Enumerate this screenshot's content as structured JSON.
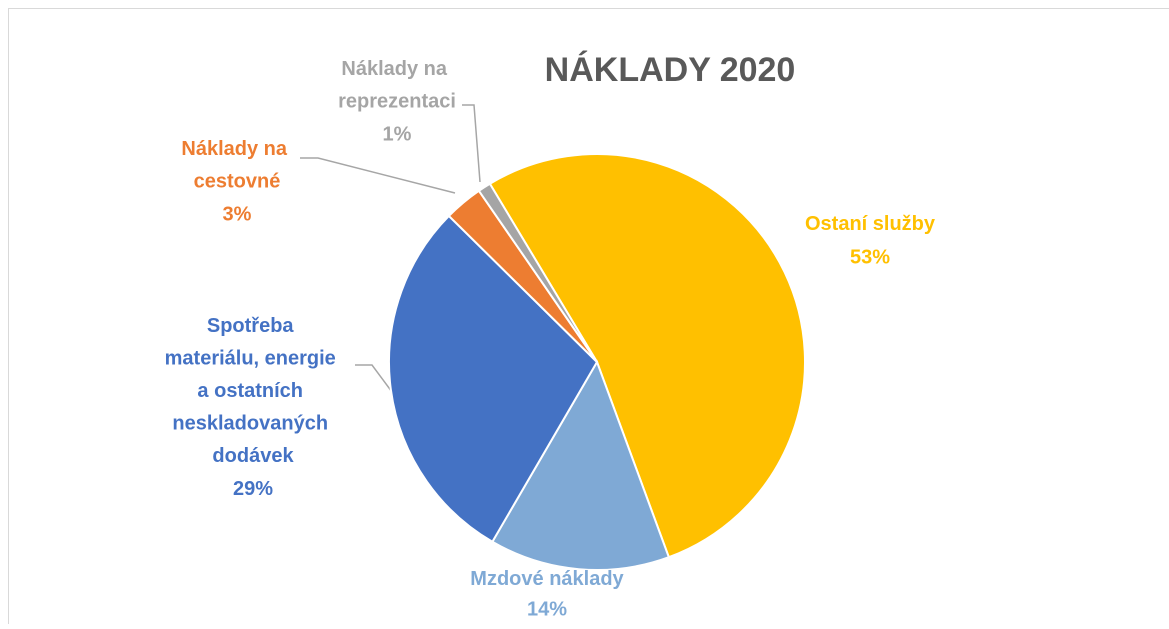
{
  "chart_data": {
    "type": "pie",
    "title": "NÁKLADY 2020",
    "categories": [
      "Ostaní služby",
      "Mzdové náklady",
      "Spotřeba materiálu, energie a ostatních neskladovaných dodávek",
      "Náklady na cestovné",
      "Náklady na reprezentaci"
    ],
    "values": [
      53,
      14,
      29,
      3,
      1
    ],
    "value_labels": [
      "53%",
      "14%",
      "29%",
      "3%",
      "1%"
    ],
    "colors": [
      "#FFC000",
      "#7FA9D5",
      "#4472C4",
      "#ED7D31",
      "#A5A5A5"
    ]
  }
}
